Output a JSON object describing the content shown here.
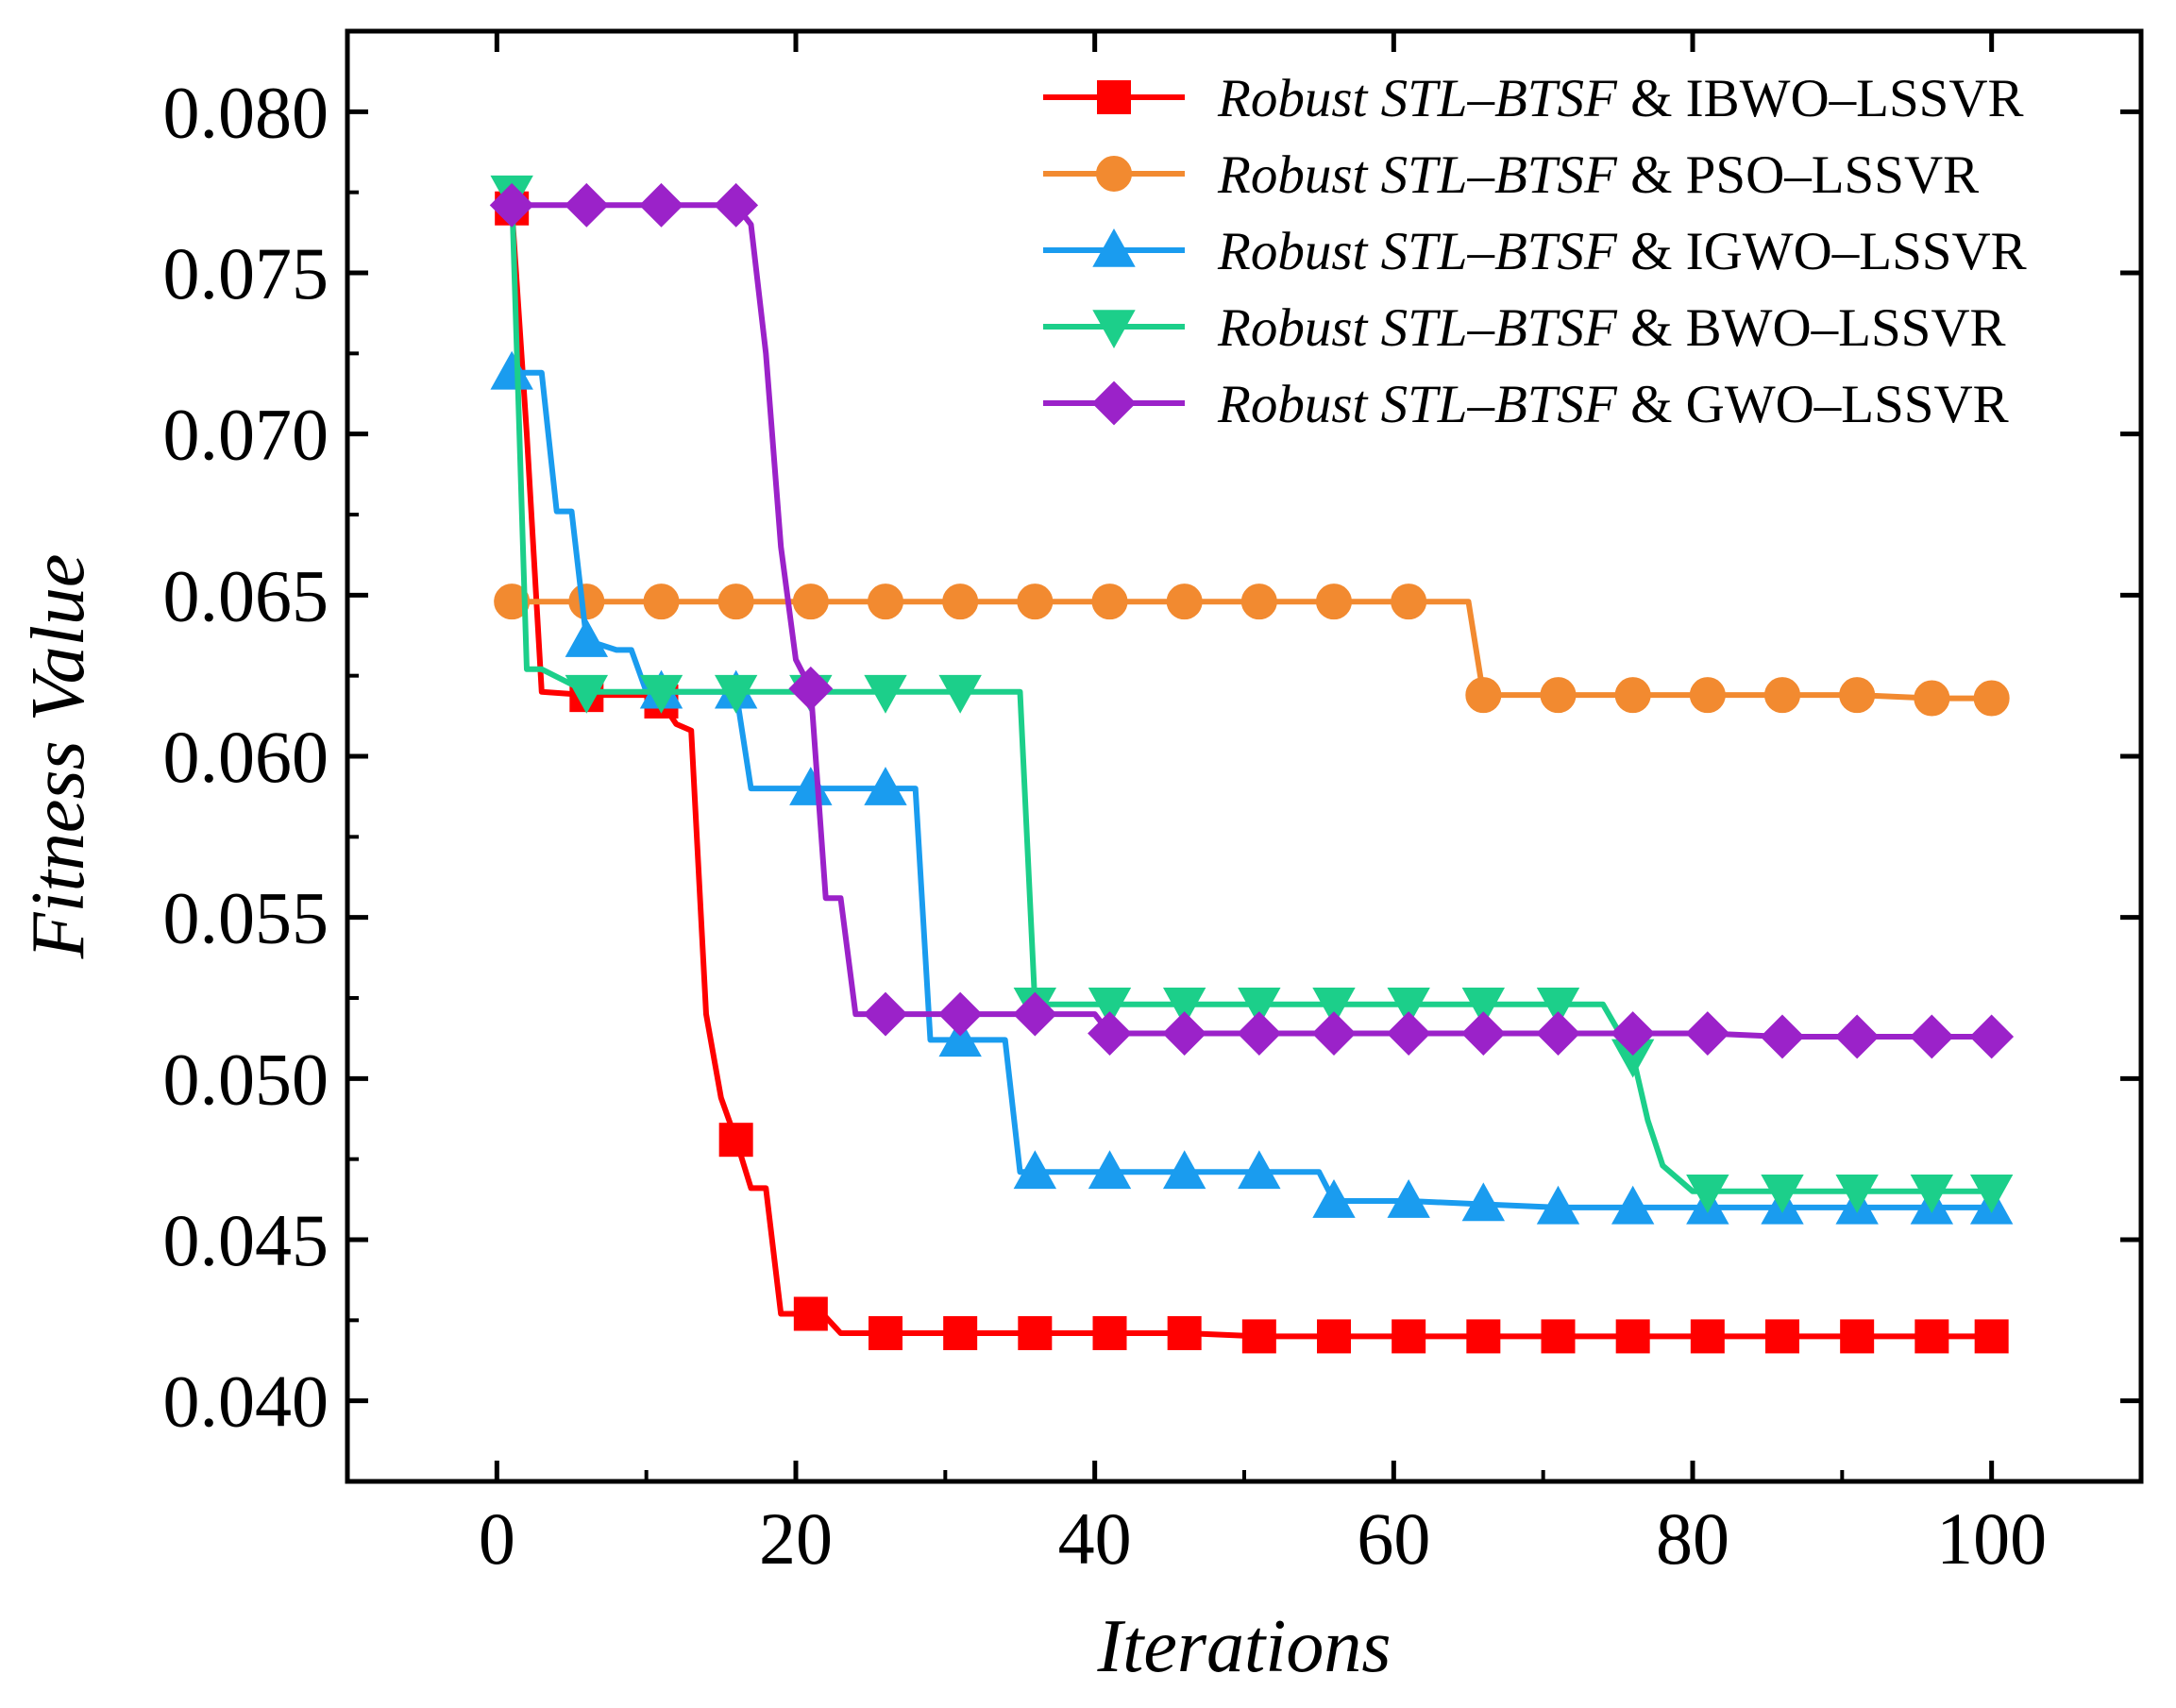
{
  "chart_data": {
    "type": "line",
    "title": "",
    "xlabel": "Iterations",
    "ylabel": "Fitness Value",
    "xlim": [
      -10,
      110
    ],
    "ylim": [
      0.0375,
      0.0825
    ],
    "xticks": [
      0,
      20,
      40,
      60,
      80,
      100
    ],
    "yticks": [
      0.04,
      0.045,
      0.05,
      0.055,
      0.06,
      0.065,
      0.07,
      0.075,
      0.08
    ],
    "xtick_labels": [
      "0",
      "20",
      "40",
      "60",
      "80",
      "100"
    ],
    "ytick_labels": [
      "0.040",
      "0.045",
      "0.050",
      "0.055",
      "0.060",
      "0.065",
      "0.070",
      "0.075",
      "0.080"
    ],
    "legend_position": "top-right",
    "marker_x": [
      1,
      6,
      11,
      16,
      21,
      26,
      31,
      36,
      41,
      46,
      51,
      56,
      61,
      66,
      71,
      76,
      81,
      86,
      91,
      96,
      100
    ],
    "series": [
      {
        "name": "Robust STL–BTSF & IBWO–LSSVR",
        "name_italic": "Robust STL–BTSF",
        "name_connector": "&",
        "name_rest": "IBWO–LSSVR",
        "color": "#ff0000",
        "marker": "square",
        "x": [
          1,
          2,
          3,
          6,
          10,
          11,
          12,
          13,
          14,
          15,
          16,
          17,
          18,
          19,
          20,
          21,
          22,
          23,
          26,
          31,
          36,
          41,
          46,
          51,
          56,
          61,
          66,
          71,
          76,
          81,
          86,
          91,
          96,
          100
        ],
        "y": [
          0.077,
          0.07,
          0.062,
          0.0619,
          0.0619,
          0.0617,
          0.061,
          0.0608,
          0.052,
          0.0494,
          0.0481,
          0.0466,
          0.0466,
          0.0427,
          0.0427,
          0.0427,
          0.0426,
          0.0421,
          0.0421,
          0.0421,
          0.0421,
          0.0421,
          0.0421,
          0.042,
          0.042,
          0.042,
          0.042,
          0.042,
          0.042,
          0.042,
          0.042,
          0.042,
          0.042,
          0.042
        ]
      },
      {
        "name": "Robust STL–BTSF & PSO–LSSVR",
        "name_italic": "Robust STL–BTSF",
        "name_connector": "&",
        "name_rest": "PSO–LSSVR",
        "color": "#f28a30",
        "marker": "circle",
        "x": [
          1,
          6,
          11,
          16,
          21,
          26,
          31,
          36,
          41,
          46,
          51,
          56,
          61,
          65,
          66,
          71,
          76,
          81,
          86,
          91,
          96,
          100
        ],
        "y": [
          0.0648,
          0.0648,
          0.0648,
          0.0648,
          0.0648,
          0.0648,
          0.0648,
          0.0648,
          0.0648,
          0.0648,
          0.0648,
          0.0648,
          0.0648,
          0.0648,
          0.0619,
          0.0619,
          0.0619,
          0.0619,
          0.0619,
          0.0619,
          0.0618,
          0.0618
        ]
      },
      {
        "name": "Robust STL–BTSF & IGWO–LSSVR",
        "name_italic": "Robust STL–BTSF",
        "name_connector": "&",
        "name_rest": "IGWO–LSSVR",
        "color": "#1a9cef",
        "marker": "triangle-up",
        "x": [
          1,
          3,
          4,
          5,
          6,
          8,
          9,
          10,
          11,
          16,
          17,
          21,
          26,
          28,
          29,
          31,
          34,
          35,
          36,
          41,
          46,
          51,
          55,
          56,
          61,
          66,
          71,
          76,
          81,
          86,
          91,
          96,
          100
        ],
        "y": [
          0.0719,
          0.0719,
          0.0676,
          0.0676,
          0.0636,
          0.0633,
          0.0633,
          0.062,
          0.062,
          0.062,
          0.059,
          0.059,
          0.059,
          0.059,
          0.0512,
          0.0512,
          0.0512,
          0.0471,
          0.0471,
          0.0471,
          0.0471,
          0.0471,
          0.0471,
          0.0462,
          0.0462,
          0.0461,
          0.046,
          0.046,
          0.046,
          0.046,
          0.046,
          0.046,
          0.046
        ]
      },
      {
        "name": "Robust STL–BTSF & BWO–LSSVR",
        "name_italic": "Robust STL–BTSF",
        "name_connector": "&",
        "name_rest": "BWO–LSSVR",
        "color": "#1ccf8a",
        "marker": "triangle-down",
        "x": [
          1,
          2,
          3,
          6,
          11,
          16,
          21,
          26,
          31,
          35,
          36,
          41,
          46,
          51,
          56,
          61,
          66,
          71,
          74,
          76,
          77,
          78,
          80,
          81,
          86,
          91,
          96,
          100
        ],
        "y": [
          0.0775,
          0.0627,
          0.0627,
          0.062,
          0.062,
          0.062,
          0.062,
          0.062,
          0.062,
          0.062,
          0.0523,
          0.0523,
          0.0523,
          0.0523,
          0.0523,
          0.0523,
          0.0523,
          0.0523,
          0.0523,
          0.0507,
          0.0487,
          0.0473,
          0.0465,
          0.0465,
          0.0465,
          0.0465,
          0.0465,
          0.0465
        ]
      },
      {
        "name": "Robust STL–BTSF & GWO–LSSVR",
        "name_italic": "Robust STL–BTSF",
        "name_connector": "&",
        "name_rest": "GWO–LSSVR",
        "color": "#9b22c9",
        "marker": "diamond",
        "x": [
          1,
          6,
          11,
          16,
          17,
          18,
          19,
          20,
          21,
          22,
          23,
          24,
          26,
          31,
          36,
          40,
          41,
          46,
          51,
          56,
          61,
          66,
          71,
          76,
          81,
          86,
          91,
          96,
          100
        ],
        "y": [
          0.0771,
          0.0771,
          0.0771,
          0.0771,
          0.0765,
          0.0725,
          0.0665,
          0.063,
          0.0621,
          0.0556,
          0.0556,
          0.052,
          0.052,
          0.052,
          0.052,
          0.052,
          0.0514,
          0.0514,
          0.0514,
          0.0514,
          0.0514,
          0.0514,
          0.0514,
          0.0514,
          0.0514,
          0.0513,
          0.0513,
          0.0513,
          0.0513
        ]
      }
    ]
  }
}
